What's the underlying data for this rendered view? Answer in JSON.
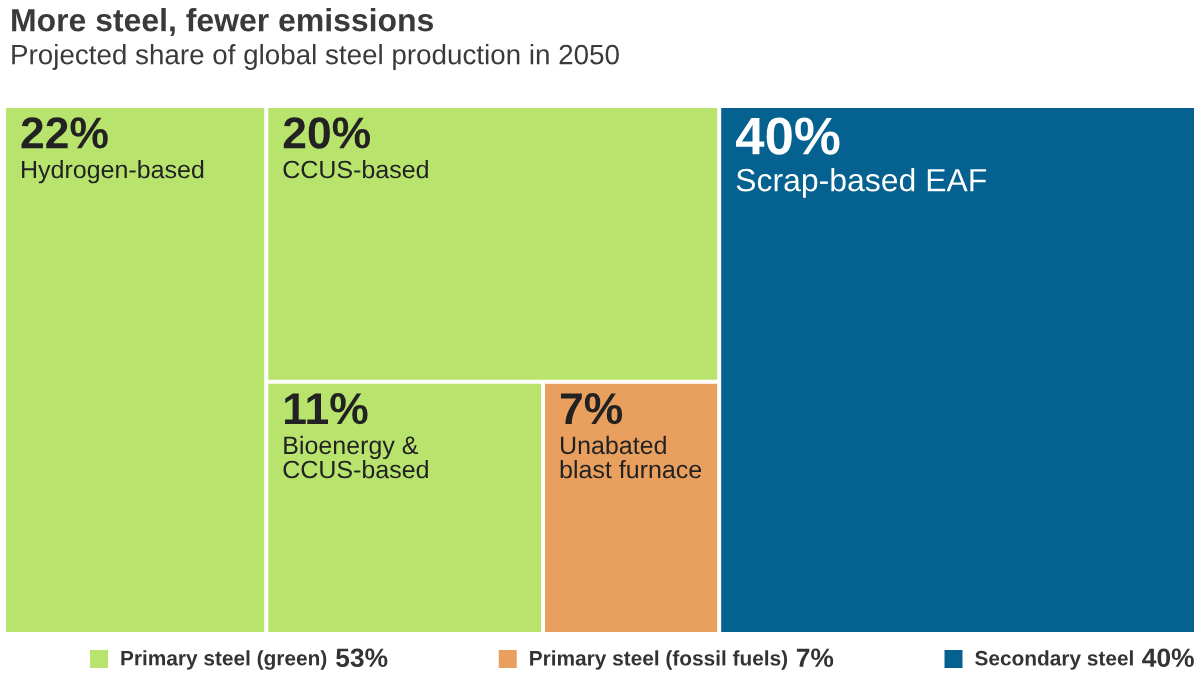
{
  "chart_data": {
    "type": "other",
    "title": "More steel, fewer emissions",
    "subtitle": "Projected share of global steel production in 2050",
    "categories": [
      "Hydrogen-based",
      "CCUS-based",
      "Bioenergy &\nCCUS-based",
      "Unabated\nblast furnace",
      "Scrap-based EAF"
    ],
    "colors": [
      "#b8e46e",
      "#b8e46e",
      "#b8e46e",
      "#e9a05e",
      "#05618f"
    ],
    "series": [
      {
        "name": "Primary steel (green)",
        "color": "#b8e46e",
        "values": [
          22,
          20,
          11,
          null,
          null
        ],
        "value_labels": [
          "22%",
          "20%",
          "11%",
          null,
          null
        ]
      },
      {
        "name": "Primary steel (fossil fuels)",
        "color": "#e9a05e",
        "values": [
          null,
          null,
          null,
          7,
          null
        ],
        "value_labels": [
          null,
          null,
          null,
          "7%",
          null
        ]
      },
      {
        "name": "Secondary steel",
        "color": "#05618f",
        "values": [
          null,
          null,
          null,
          null,
          40
        ],
        "value_labels": [
          null,
          null,
          null,
          null,
          "40%"
        ]
      }
    ],
    "totals": [
      "53%",
      "7%",
      "40%"
    ],
    "legend": "bottom"
  }
}
